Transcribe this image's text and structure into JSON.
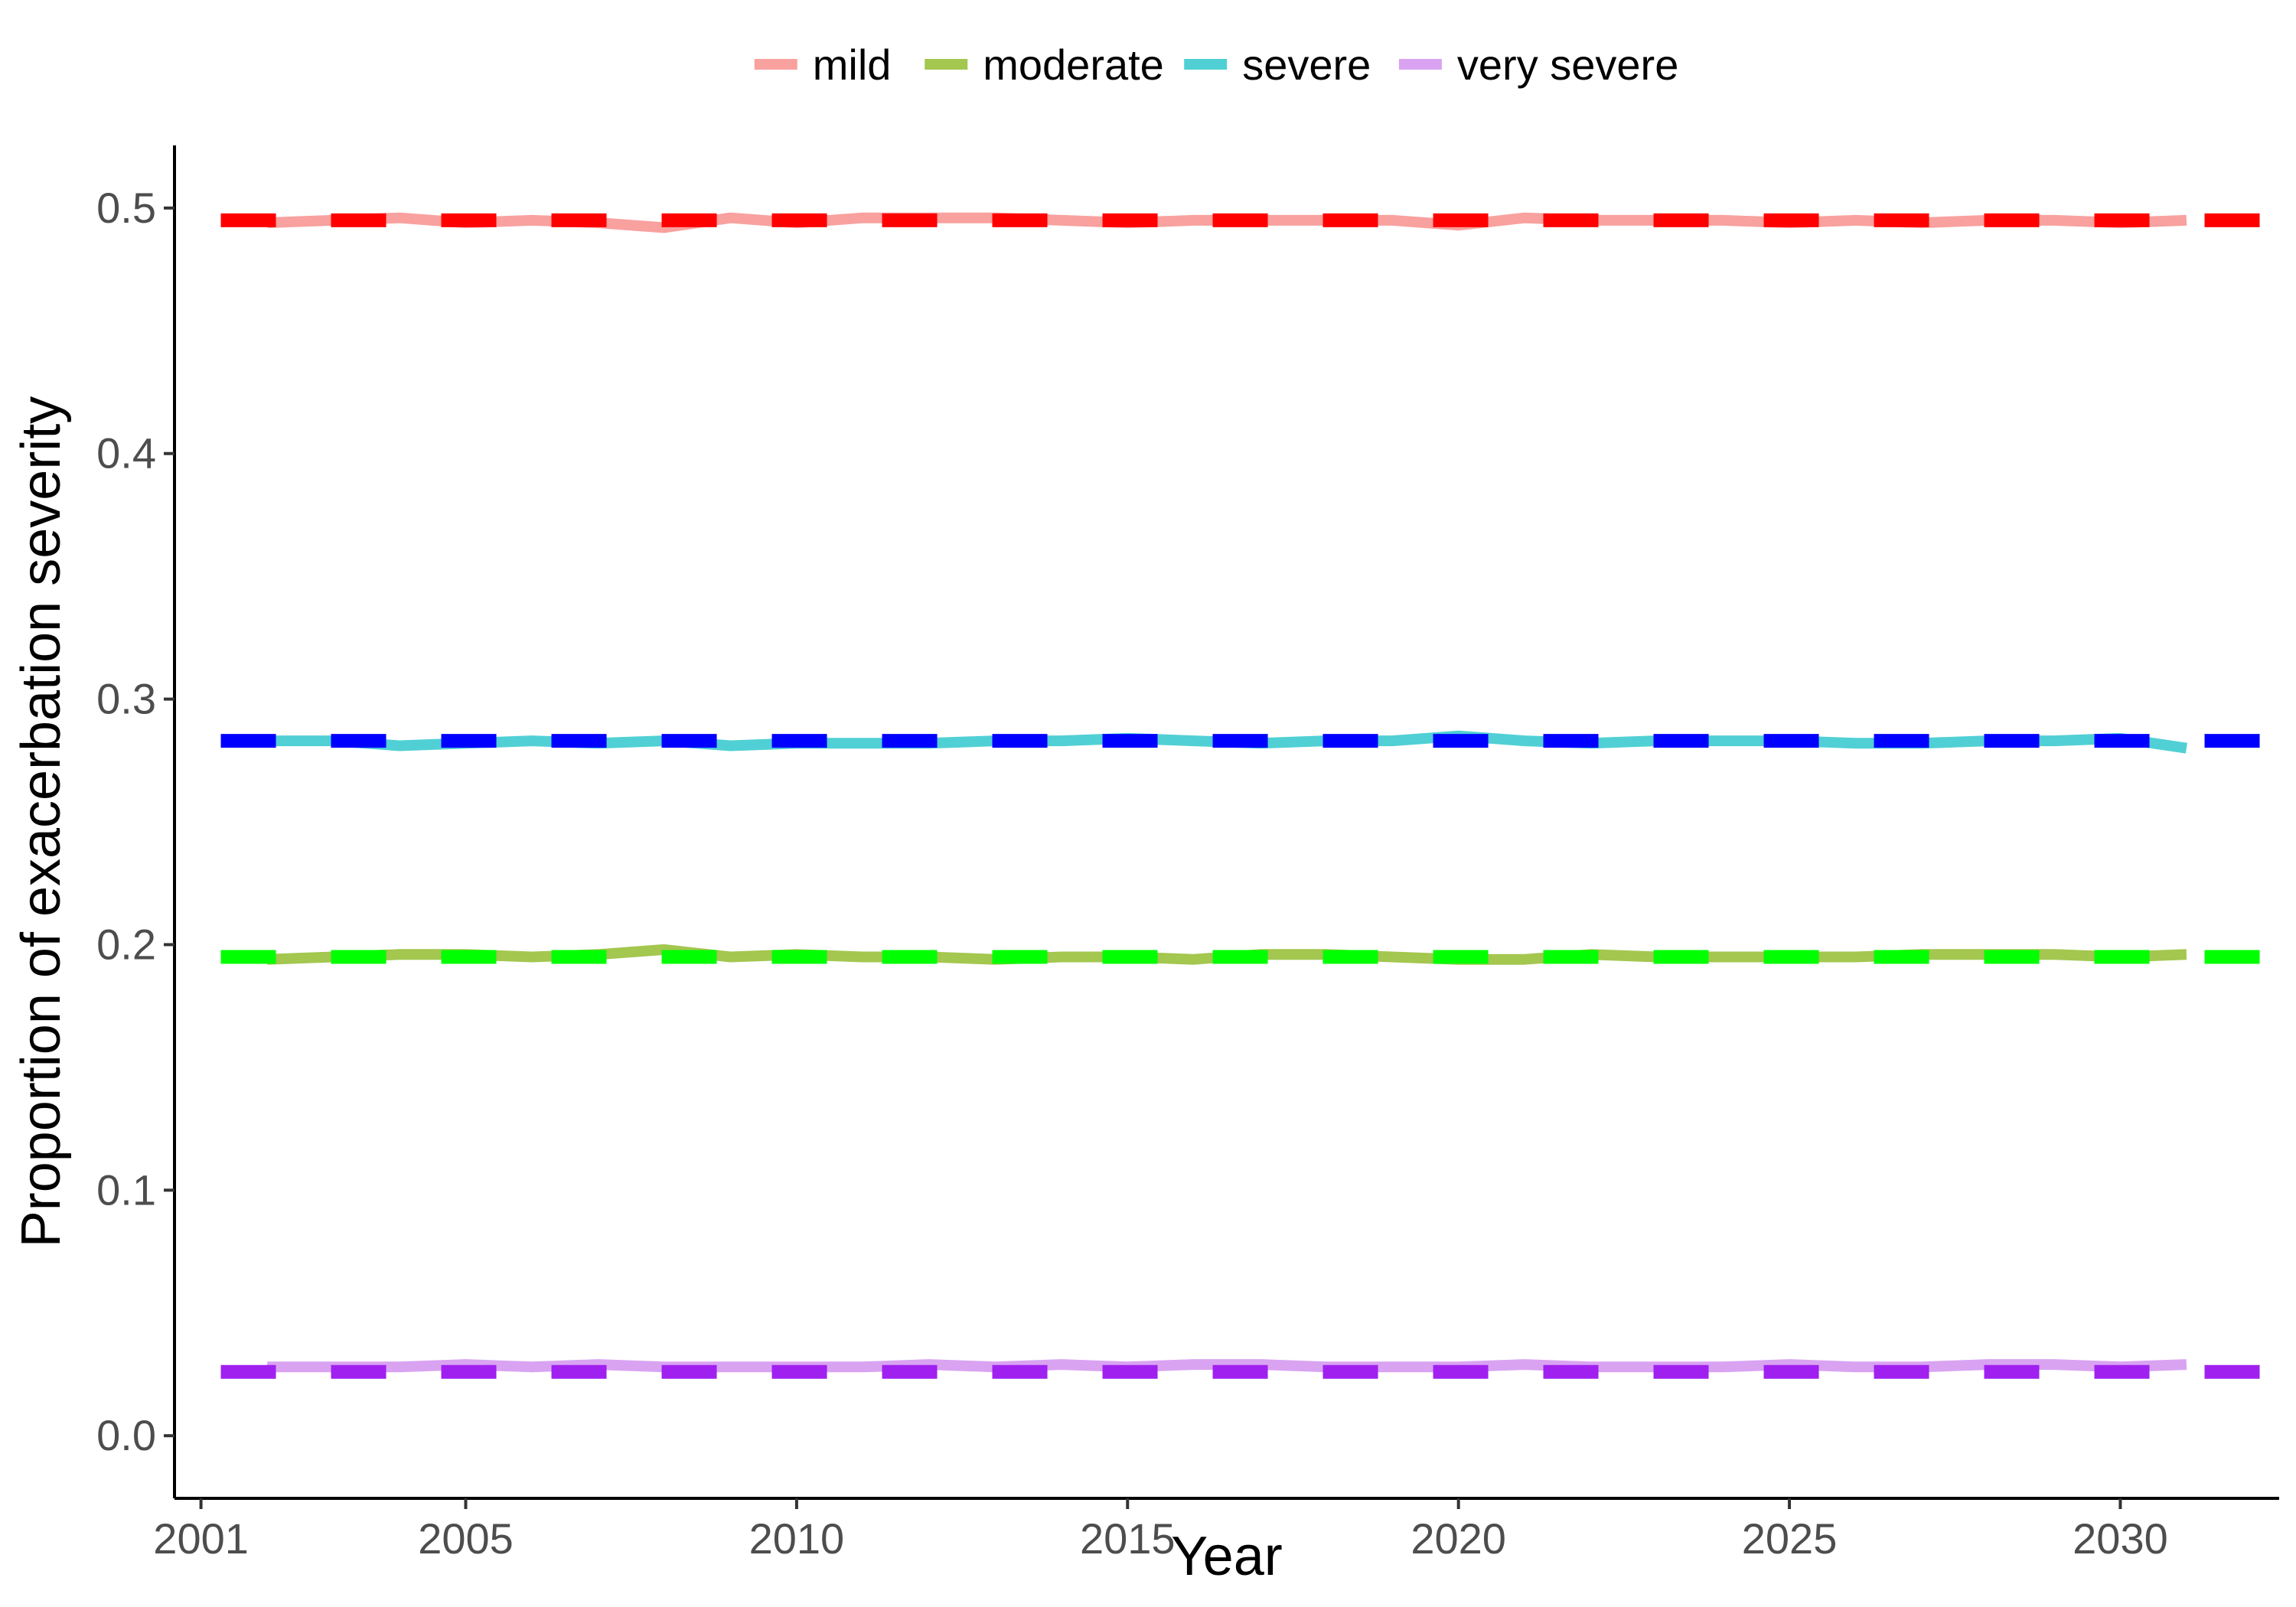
{
  "chart_data": {
    "type": "line",
    "title": "",
    "xlabel": "Year",
    "ylabel": "Proportion of exacerbation severity",
    "xlim": [
      2000.6,
      2032.4
    ],
    "ylim": [
      -0.0255,
      0.5255
    ],
    "x_ticks": [
      2001,
      2005,
      2010,
      2015,
      2020,
      2025,
      2030
    ],
    "x_tick_labels": [
      "2001",
      "2005",
      "2010",
      "2015",
      "2020",
      "2025",
      "2030"
    ],
    "y_ticks": [
      0.0,
      0.1,
      0.2,
      0.3,
      0.4,
      0.5
    ],
    "y_tick_labels": [
      "0.0",
      "0.1",
      "0.2",
      "0.3",
      "0.4",
      "0.5"
    ],
    "grid": false,
    "legend_position": "top",
    "x": [
      2002,
      2003,
      2004,
      2005,
      2006,
      2007,
      2008,
      2009,
      2010,
      2011,
      2012,
      2013,
      2014,
      2015,
      2016,
      2017,
      2018,
      2019,
      2020,
      2021,
      2022,
      2023,
      2024,
      2025,
      2026,
      2027,
      2028,
      2029,
      2030,
      2031
    ],
    "series": [
      {
        "name": "mild",
        "color": "#F8A19F",
        "values": [
          0.494,
          0.495,
          0.496,
          0.494,
          0.495,
          0.494,
          0.492,
          0.496,
          0.494,
          0.496,
          0.496,
          0.496,
          0.495,
          0.494,
          0.495,
          0.495,
          0.495,
          0.495,
          0.493,
          0.496,
          0.495,
          0.495,
          0.495,
          0.494,
          0.495,
          0.494,
          0.495,
          0.495,
          0.494,
          0.495
        ]
      },
      {
        "name": "moderate",
        "color": "#A3C74F",
        "values": [
          0.194,
          0.195,
          0.196,
          0.196,
          0.195,
          0.196,
          0.198,
          0.195,
          0.196,
          0.195,
          0.195,
          0.194,
          0.195,
          0.195,
          0.194,
          0.196,
          0.196,
          0.195,
          0.194,
          0.194,
          0.196,
          0.195,
          0.195,
          0.195,
          0.195,
          0.196,
          0.196,
          0.196,
          0.195,
          0.196
        ]
      },
      {
        "name": "severe",
        "color": "#50D0D4",
        "values": [
          0.283,
          0.283,
          0.281,
          0.282,
          0.283,
          0.282,
          0.283,
          0.281,
          0.282,
          0.282,
          0.282,
          0.283,
          0.283,
          0.284,
          0.283,
          0.282,
          0.283,
          0.283,
          0.285,
          0.283,
          0.282,
          0.283,
          0.283,
          0.283,
          0.282,
          0.282,
          0.283,
          0.283,
          0.284,
          0.28
        ]
      },
      {
        "name": "very severe",
        "color": "#D9A3F2",
        "values": [
          0.028,
          0.028,
          0.028,
          0.029,
          0.028,
          0.029,
          0.028,
          0.028,
          0.028,
          0.028,
          0.029,
          0.028,
          0.029,
          0.028,
          0.029,
          0.029,
          0.028,
          0.028,
          0.028,
          0.029,
          0.028,
          0.028,
          0.028,
          0.029,
          0.028,
          0.028,
          0.029,
          0.029,
          0.028,
          0.029
        ]
      }
    ],
    "reference_lines": [
      {
        "series": "mild",
        "value": 0.495,
        "color": "#FF0000",
        "style": "dashed"
      },
      {
        "series": "moderate",
        "value": 0.195,
        "color": "#00FF00",
        "style": "dashed"
      },
      {
        "series": "severe",
        "value": 0.283,
        "color": "#0000FF",
        "style": "dashed"
      },
      {
        "series": "very severe",
        "value": 0.026,
        "color": "#A020F0",
        "style": "dashed"
      }
    ]
  }
}
